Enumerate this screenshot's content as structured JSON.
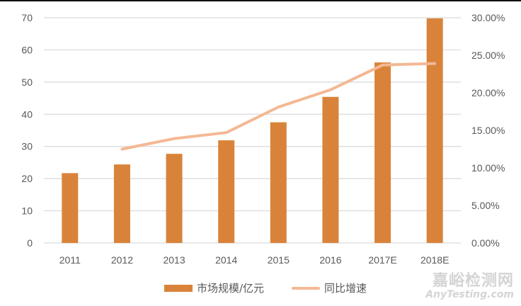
{
  "chart_data": {
    "type": "bar",
    "combo": "bar+line",
    "title": "",
    "categories": [
      "2011",
      "2012",
      "2013",
      "2014",
      "2015",
      "2016",
      "2017E",
      "2018E"
    ],
    "series": [
      {
        "name": "市场规模/亿元",
        "type": "bar",
        "axis": "left",
        "color": "#D9833A",
        "values": [
          21.7,
          24.4,
          27.7,
          31.9,
          37.5,
          45.4,
          56.1,
          69.8
        ]
      },
      {
        "name": "同比增速",
        "type": "line",
        "axis": "right",
        "color": "#F4B894",
        "values": [
          null,
          0.125,
          0.139,
          0.147,
          0.181,
          0.204,
          0.237,
          0.239
        ]
      }
    ],
    "xlabel": "",
    "ylabel": "",
    "ylim": [
      0,
      70
    ],
    "yticks": [
      "0",
      "10",
      "20",
      "30",
      "40",
      "50",
      "60",
      "70"
    ],
    "y2lim": [
      0,
      0.3
    ],
    "y2ticks": [
      "0.00%",
      "5.00%",
      "10.00%",
      "15.00%",
      "20.00%",
      "25.00%",
      "30.00%"
    ],
    "grid": true,
    "legend_position": "bottom"
  },
  "legend": {
    "bar_label": "市场规模/亿元",
    "line_label": "同比增速"
  },
  "watermark": {
    "cn": "嘉峪检测网",
    "en": "AnyTesting.com"
  }
}
